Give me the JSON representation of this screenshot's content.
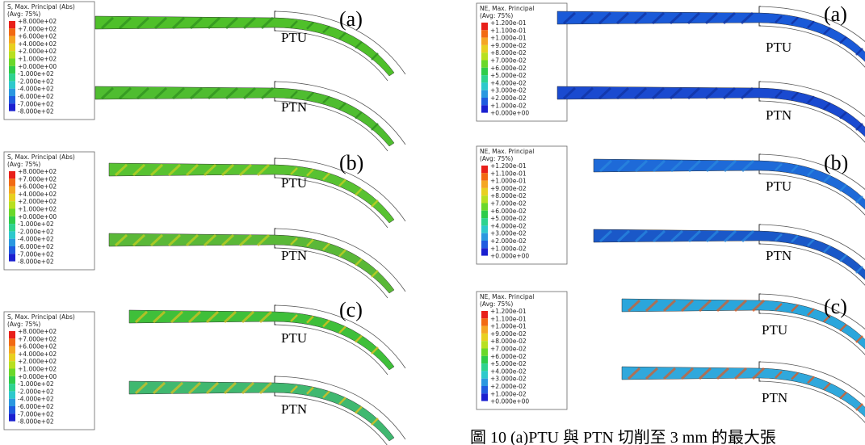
{
  "left": {
    "legend_title": "S, Max. Principal (Abs)",
    "legend_avg": "(Avg: 75%)",
    "legend_labels": [
      "+8.000e+02",
      "+7.000e+02",
      "+6.000e+02",
      "+4.000e+02",
      "+2.000e+02",
      "+1.000e+02",
      "+0.000e+00",
      "-1.000e+02",
      "-2.000e+02",
      "-4.000e+02",
      "-6.000e+02",
      "-7.000e+02",
      "-8.000e+02"
    ],
    "panels": [
      {
        "label": "(a)",
        "upper": "PTU",
        "lower": "PTN"
      },
      {
        "label": "(b)",
        "upper": "PTU",
        "lower": "PTN"
      },
      {
        "label": "(c)",
        "upper": "PTU",
        "lower": "PTN"
      }
    ]
  },
  "right": {
    "legend_title": "NE, Max. Principal",
    "legend_avg": "(Avg: 75%)",
    "legend_labels": [
      "+1.200e-01",
      "+1.100e-01",
      "+1.000e-01",
      "+9.000e-02",
      "+8.000e-02",
      "+7.000e-02",
      "+6.000e-02",
      "+5.000e-02",
      "+4.000e-02",
      "+3.000e-02",
      "+2.000e-02",
      "+1.000e-02",
      "+0.000e+00"
    ],
    "panels": [
      {
        "label": "(a)",
        "upper": "PTU",
        "lower": "PTN"
      },
      {
        "label": "(b)",
        "upper": "PTU",
        "lower": "PTN"
      },
      {
        "label": "(c)",
        "upper": "PTU",
        "lower": "PTN"
      }
    ]
  },
  "caption": "圖 10 (a)PTU 與 PTN 切削至 3 mm 的最大張"
}
